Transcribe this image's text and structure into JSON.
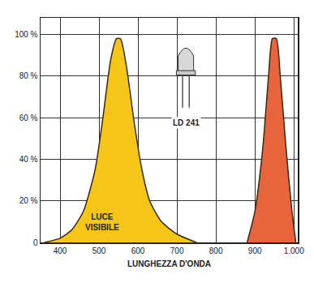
{
  "chart_data": {
    "type": "area",
    "x_label": "LUNGHEZZA D'ONDA",
    "annotations": [
      "LUCE VISIBILE",
      "LD 241"
    ],
    "series": [
      {
        "color": "#f5c518",
        "x": [
          360,
          400,
          430,
          460,
          490,
          510,
          530,
          545,
          555,
          570,
          590,
          610,
          630,
          660,
          700,
          750
        ],
        "values": [
          0,
          2,
          6,
          15,
          35,
          60,
          88,
          98,
          98,
          85,
          58,
          35,
          20,
          10,
          4,
          0
        ]
      },
      {
        "color": "#e8643c",
        "x": [
          880,
          900,
          920,
          935,
          945,
          955,
          965,
          980,
          995,
          1005
        ],
        "values": [
          0,
          15,
          45,
          80,
          98,
          98,
          80,
          45,
          15,
          0
        ]
      }
    ],
    "xlim": [
      350,
      1010
    ],
    "xticks": [
      400,
      500,
      600,
      700,
      800,
      900,
      {
        "value": 1000,
        "label": "1.000"
      }
    ],
    "ylim": [
      0,
      108
    ],
    "yticks": [
      0,
      {
        "value": 20,
        "label": "20 %"
      },
      {
        "value": 40,
        "label": "40 %"
      },
      {
        "value": 60,
        "label": "60 %"
      },
      {
        "value": 80,
        "label": "80 %"
      },
      {
        "value": 100,
        "label": "100 %"
      }
    ],
    "grid": true
  }
}
